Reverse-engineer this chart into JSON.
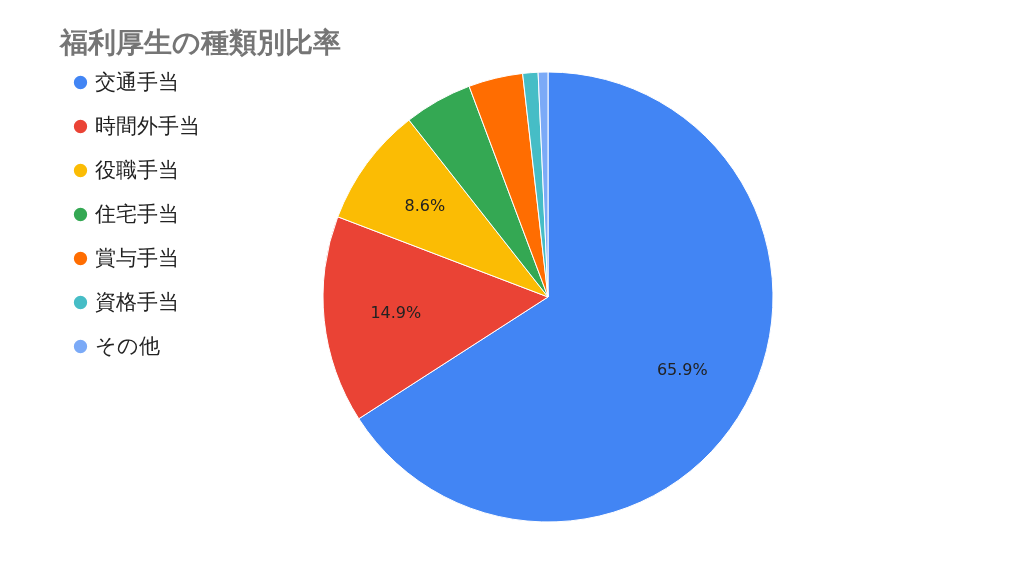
{
  "chart_data": {
    "type": "pie",
    "title": "福利厚生の種類別比率",
    "categories": [
      "交通手当",
      "時間外手当",
      "役職手当",
      "住宅手当",
      "賞与手当",
      "資格手当",
      "その他"
    ],
    "values": [
      65.9,
      14.9,
      8.6,
      4.9,
      3.9,
      1.1,
      0.7
    ],
    "colors": [
      "#4285f4",
      "#ea4335",
      "#fbbc04",
      "#34a853",
      "#ff6d01",
      "#46bdc6",
      "#7baaf7"
    ],
    "value_labels": [
      "65.9%",
      "14.9%",
      "8.6%",
      null,
      null,
      null,
      null
    ],
    "legend": "left"
  }
}
